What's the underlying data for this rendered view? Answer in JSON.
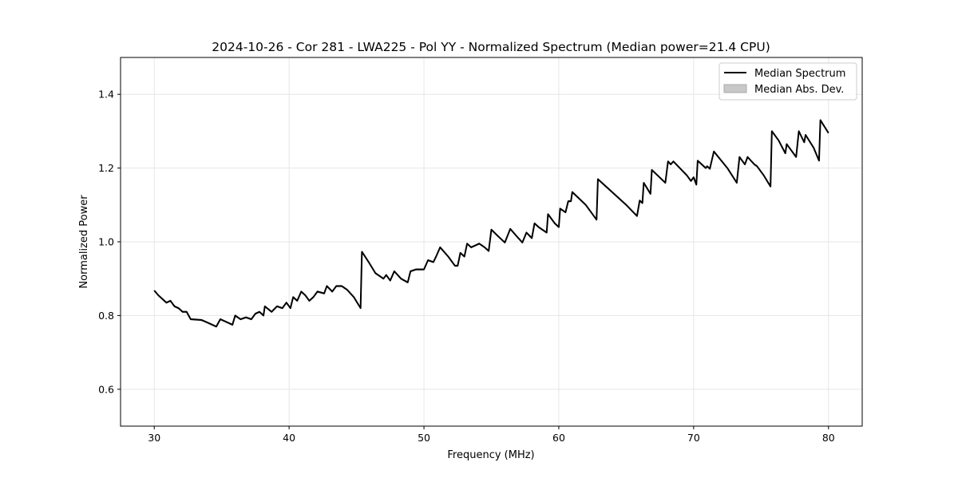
{
  "chart_data": {
    "type": "line",
    "title": "2024-10-26 - Cor 281 - LWA225 - Pol YY - Normalized Spectrum (Median power=21.4 CPU)",
    "xlabel": "Frequency (MHz)",
    "ylabel": "Normalized Power",
    "xlim": [
      27.5,
      82.5
    ],
    "ylim": [
      0.5,
      1.5
    ],
    "xticks": [
      30,
      40,
      50,
      60,
      70,
      80
    ],
    "yticks": [
      0.6,
      0.8,
      1.0,
      1.2,
      1.4
    ],
    "xtick_labels": [
      "30",
      "40",
      "50",
      "60",
      "70",
      "80"
    ],
    "ytick_labels": [
      "0.6",
      "0.8",
      "1.0",
      "1.2",
      "1.4"
    ],
    "grid": true,
    "legend_position": "top-right",
    "legend": [
      "Median Spectrum",
      "Median Abs. Dev."
    ],
    "colors": {
      "line": "#000000",
      "band": "#c8c8c8"
    },
    "series": [
      {
        "name": "Median Spectrum",
        "x": [
          30.0,
          30.3,
          30.6,
          30.9,
          31.2,
          31.5,
          31.8,
          32.1,
          32.4,
          32.7,
          33.5,
          34.0,
          34.6,
          34.9,
          35.5,
          35.8,
          36.0,
          36.4,
          36.8,
          37.2,
          37.5,
          37.8,
          38.1,
          38.2,
          38.7,
          39.1,
          39.5,
          39.8,
          40.1,
          40.3,
          40.6,
          40.9,
          41.2,
          41.5,
          41.8,
          42.1,
          42.6,
          42.8,
          43.2,
          43.5,
          43.9,
          44.3,
          44.8,
          45.3,
          45.4,
          45.9,
          46.4,
          47.0,
          47.2,
          47.5,
          47.8,
          48.3,
          48.8,
          49.0,
          49.4,
          49.8,
          50.0,
          50.3,
          50.7,
          50.9,
          51.2,
          51.8,
          52.3,
          52.5,
          52.7,
          53.0,
          53.2,
          53.5,
          53.8,
          54.1,
          54.5,
          54.8,
          55.0,
          55.5,
          56.0,
          56.4,
          57.0,
          57.3,
          57.6,
          58.0,
          58.2,
          58.5,
          58.9,
          59.1,
          59.2,
          59.7,
          60.0,
          60.1,
          60.5,
          60.7,
          60.9,
          61.0,
          62.0,
          62.8,
          62.9,
          63.5,
          65.0,
          65.8,
          66.0,
          66.2,
          66.3,
          66.8,
          66.9,
          67.9,
          68.1,
          68.3,
          68.5,
          69.5,
          69.8,
          70.0,
          70.2,
          70.3,
          70.9,
          71.0,
          71.2,
          71.5,
          72.5,
          73.2,
          73.4,
          73.8,
          74.0,
          74.5,
          74.7,
          75.2,
          75.7,
          75.8,
          76.3,
          76.8,
          76.9,
          77.6,
          77.8,
          78.2,
          78.3,
          78.9,
          79.3,
          79.4,
          80.0
        ],
        "y": [
          0.868,
          0.855,
          0.845,
          0.835,
          0.84,
          0.825,
          0.82,
          0.81,
          0.81,
          0.79,
          0.788,
          0.78,
          0.77,
          0.79,
          0.78,
          0.775,
          0.8,
          0.79,
          0.795,
          0.79,
          0.805,
          0.81,
          0.8,
          0.825,
          0.81,
          0.825,
          0.82,
          0.835,
          0.82,
          0.85,
          0.84,
          0.865,
          0.855,
          0.84,
          0.85,
          0.865,
          0.86,
          0.88,
          0.865,
          0.88,
          0.88,
          0.87,
          0.85,
          0.82,
          0.973,
          0.945,
          0.915,
          0.9,
          0.91,
          0.895,
          0.92,
          0.9,
          0.89,
          0.92,
          0.925,
          0.925,
          0.925,
          0.95,
          0.945,
          0.96,
          0.985,
          0.96,
          0.935,
          0.935,
          0.97,
          0.96,
          0.995,
          0.985,
          0.99,
          0.995,
          0.985,
          0.975,
          1.033,
          1.015,
          0.998,
          1.035,
          1.01,
          0.998,
          1.025,
          1.01,
          1.05,
          1.04,
          1.03,
          1.025,
          1.075,
          1.05,
          1.04,
          1.09,
          1.08,
          1.11,
          1.11,
          1.135,
          1.1,
          1.06,
          1.17,
          1.15,
          1.1,
          1.07,
          1.112,
          1.105,
          1.16,
          1.13,
          1.195,
          1.16,
          1.218,
          1.21,
          1.218,
          1.18,
          1.165,
          1.175,
          1.155,
          1.22,
          1.2,
          1.205,
          1.198,
          1.245,
          1.2,
          1.16,
          1.23,
          1.21,
          1.23,
          1.21,
          1.205,
          1.18,
          1.15,
          1.3,
          1.275,
          1.24,
          1.265,
          1.23,
          1.3,
          1.27,
          1.29,
          1.255,
          1.22,
          1.33,
          1.295
        ]
      }
    ]
  }
}
